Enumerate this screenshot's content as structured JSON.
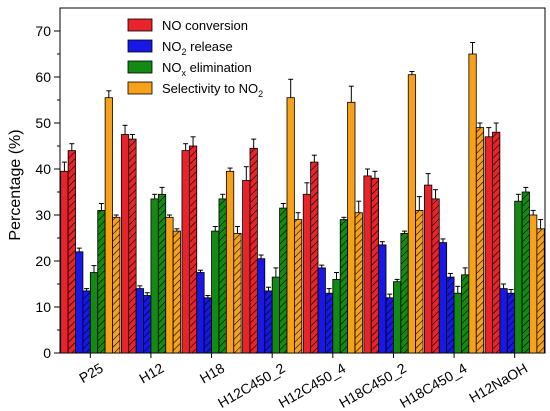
{
  "chart_data": {
    "type": "bar",
    "ylabel": "Percentage (%)",
    "xlabel": "",
    "ylim": [
      0,
      75
    ],
    "yticks": [
      0,
      10,
      20,
      30,
      40,
      50,
      60,
      70
    ],
    "categories": [
      "P25",
      "H12",
      "H18",
      "H12C450_2",
      "H12C450_4",
      "H18C450_2",
      "H18C450_4",
      "H12NaOH"
    ],
    "note": "Each series has a solid bar and a hatched bar per category; error bars shown on all bars.",
    "series": [
      {
        "name": "NO conversion",
        "name_parts": [
          "NO conversion",
          "",
          ""
        ],
        "color": "#e8232a",
        "solid": [
          39.5,
          47.5,
          44,
          37.5,
          34.5,
          38.5,
          36.5,
          47
        ],
        "solid_err": [
          2,
          2,
          1.5,
          3,
          2.5,
          1.5,
          2.5,
          2
        ],
        "hatched": [
          44,
          46.5,
          45,
          44.5,
          41.5,
          38,
          33.5,
          48
        ],
        "hatched_err": [
          1.5,
          1,
          2,
          2,
          1.5,
          1.5,
          2,
          2
        ]
      },
      {
        "name": "NO2 release",
        "name_parts": [
          "NO",
          "2",
          " release"
        ],
        "color": "#1717e6",
        "solid": [
          22,
          14,
          17.5,
          20.5,
          18.5,
          23.5,
          24,
          14
        ],
        "solid_err": [
          0.8,
          0.6,
          0.5,
          0.8,
          0.6,
          0.7,
          0.8,
          1
        ],
        "hatched": [
          13.5,
          12.5,
          12,
          13.5,
          13,
          12,
          16.5,
          13
        ],
        "hatched_err": [
          0.5,
          0.6,
          0.5,
          0.8,
          1,
          0.8,
          0.8,
          0.8
        ]
      },
      {
        "name": "NOx elimination",
        "name_parts": [
          "NO",
          "x",
          " elimination"
        ],
        "color": "#138a13",
        "solid": [
          17.5,
          33.5,
          26.5,
          16.5,
          16,
          15.5,
          13,
          33
        ],
        "solid_err": [
          1.5,
          1,
          1,
          2,
          1.5,
          0.5,
          1.5,
          1.5
        ],
        "hatched": [
          31,
          34.5,
          33.5,
          31.5,
          29,
          26,
          17,
          35
        ],
        "hatched_err": [
          1.5,
          1.5,
          1,
          1,
          0.5,
          0.5,
          1.5,
          1
        ]
      },
      {
        "name": "Selectivity to NO2",
        "name_parts": [
          "Selectivity to NO",
          "2",
          ""
        ],
        "color": "#f7a11b",
        "solid": [
          55.5,
          29.5,
          39.5,
          55.5,
          54.5,
          60.5,
          65,
          30
        ],
        "solid_err": [
          1.5,
          0.5,
          0.7,
          4,
          3.5,
          0.7,
          2.5,
          1
        ],
        "hatched": [
          29.5,
          26.5,
          26,
          29,
          30.5,
          31,
          49,
          27
        ],
        "hatched_err": [
          0.5,
          0.5,
          1.5,
          1.5,
          2.5,
          3,
          1,
          2
        ]
      }
    ],
    "legend_position": "top-center"
  }
}
